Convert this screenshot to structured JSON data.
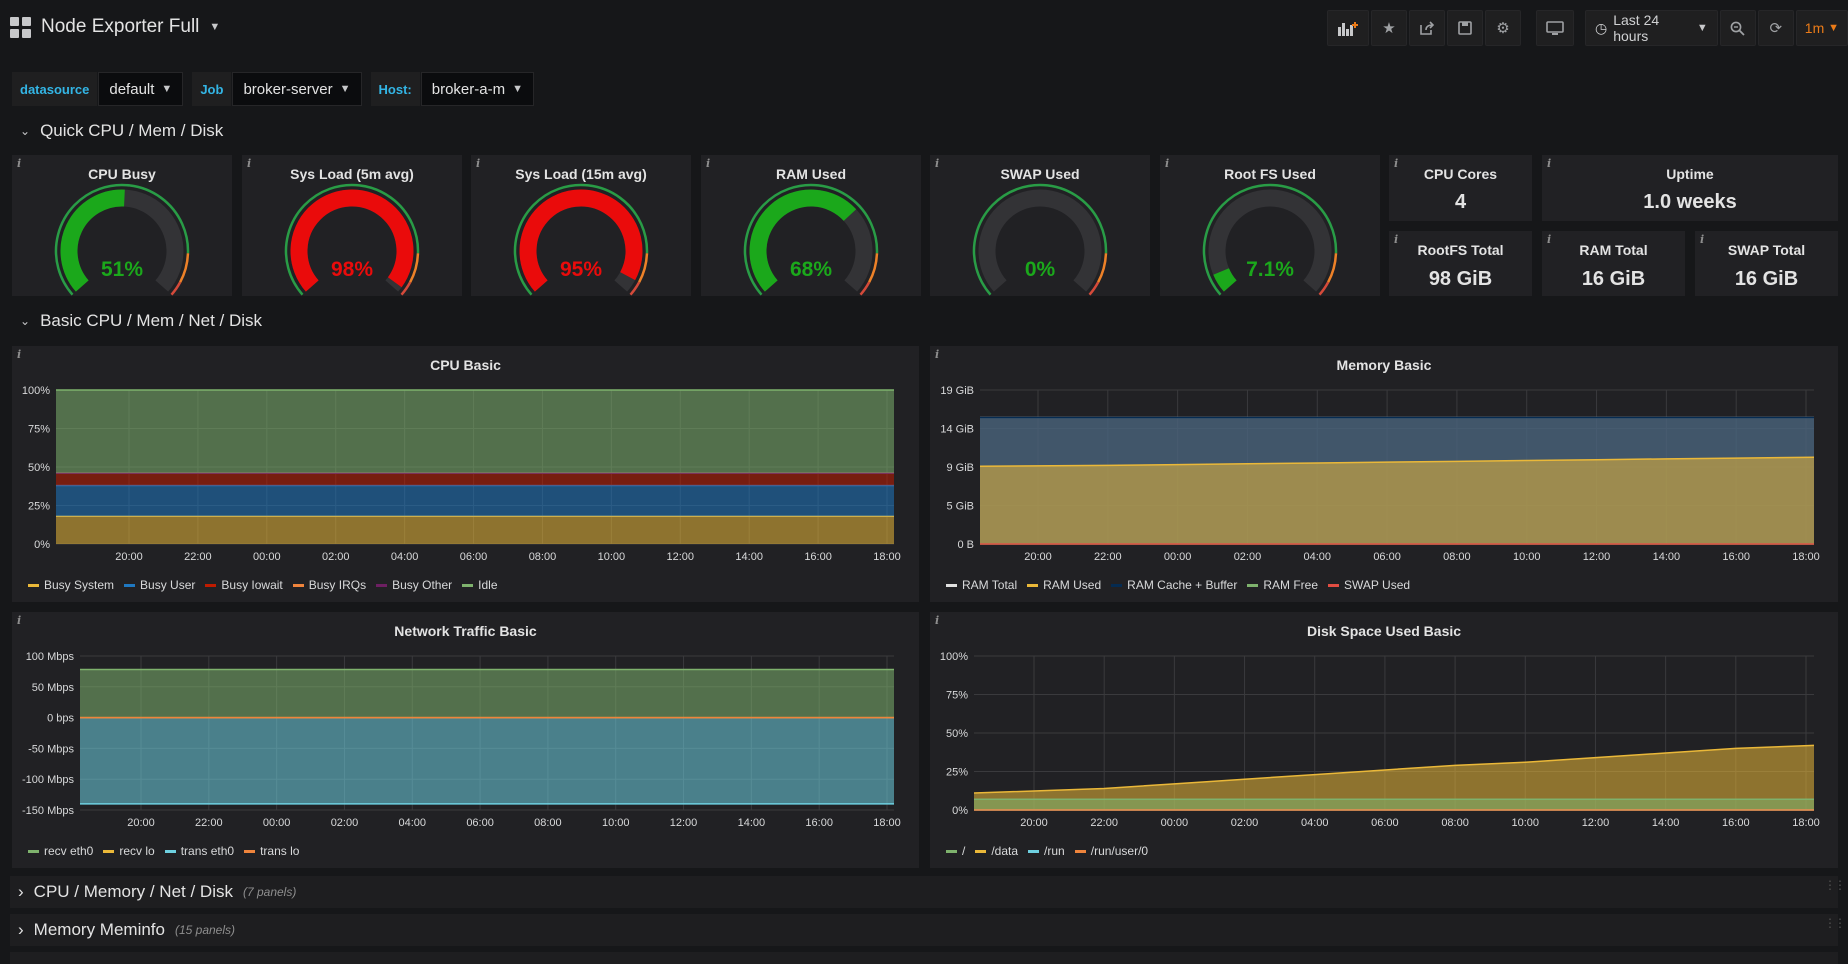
{
  "header": {
    "title": "Node Exporter Full",
    "time_range": "Last 24 hours",
    "refresh_interval": "1m",
    "toolbar_icons": [
      "add-panel-icon",
      "star-icon",
      "share-icon",
      "save-icon",
      "settings-icon",
      "tv-mode-icon",
      "clock-icon",
      "zoom-out-icon",
      "refresh-icon"
    ]
  },
  "variables": [
    {
      "label": "datasource",
      "value": "default"
    },
    {
      "label": "Job",
      "value": "broker-server"
    },
    {
      "label": "Host:",
      "value": "broker-a-m"
    }
  ],
  "rows": {
    "quick": "Quick CPU / Mem / Disk",
    "basic": "Basic CPU / Mem / Net / Disk",
    "collapsed": [
      {
        "title": "CPU / Memory / Net / Disk",
        "count": "(7 panels)"
      },
      {
        "title": "Memory Meminfo",
        "count": "(15 panels)"
      },
      {
        "title": "",
        "count": ""
      }
    ]
  },
  "gauges": [
    {
      "title": "CPU Busy",
      "display": "51%",
      "value": 51,
      "color": "#1ba81b"
    },
    {
      "title": "Sys Load (5m avg)",
      "display": "98%",
      "value": 98,
      "color": "#ea0b0b"
    },
    {
      "title": "Sys Load (15m avg)",
      "display": "95%",
      "value": 95,
      "color": "#ea0b0b"
    },
    {
      "title": "RAM Used",
      "display": "68%",
      "value": 68,
      "color": "#1ba81b"
    },
    {
      "title": "SWAP Used",
      "display": "0%",
      "value": 0,
      "color": "#1ba81b"
    },
    {
      "title": "Root FS Used",
      "display": "7.1%",
      "value": 7.1,
      "color": "#1ba81b"
    }
  ],
  "stats": {
    "cpu_cores": {
      "title": "CPU Cores",
      "value": "4"
    },
    "uptime": {
      "title": "Uptime",
      "value": "1.0 weeks"
    },
    "rootfs_total": {
      "title": "RootFS Total",
      "value": "98 GiB"
    },
    "ram_total": {
      "title": "RAM Total",
      "value": "16 GiB"
    },
    "swap_total": {
      "title": "SWAP Total",
      "value": "16 GiB"
    }
  },
  "chart_data": [
    {
      "type": "area",
      "title": "CPU Basic",
      "x": [
        "20:00",
        "22:00",
        "00:00",
        "02:00",
        "04:00",
        "06:00",
        "08:00",
        "10:00",
        "12:00",
        "14:00",
        "16:00",
        "18:00"
      ],
      "y_ticks": [
        "0%",
        "25%",
        "50%",
        "75%",
        "100%"
      ],
      "ylim": [
        0,
        100
      ],
      "stacked": true,
      "series": [
        {
          "name": "Busy System",
          "color": "#eab839",
          "values": [
            18,
            18,
            18,
            18,
            18,
            18,
            18,
            18,
            18,
            18,
            18,
            18
          ]
        },
        {
          "name": "Busy User",
          "color": "#1f78c1",
          "values": [
            20,
            20,
            20,
            20,
            20,
            20,
            20,
            20,
            20,
            20,
            20,
            20
          ]
        },
        {
          "name": "Busy Iowait",
          "color": "#bf1b00",
          "values": [
            8,
            8,
            8,
            8,
            8,
            8,
            8,
            8,
            8,
            8,
            8,
            8
          ]
        },
        {
          "name": "Busy IRQs",
          "color": "#ef843c",
          "values": [
            0,
            0,
            0,
            0,
            0,
            0,
            0,
            0,
            0,
            0,
            0,
            0
          ]
        },
        {
          "name": "Busy Other",
          "color": "#6d1f62",
          "values": [
            0,
            0,
            0,
            0,
            0,
            0,
            0,
            0,
            0,
            0,
            0,
            0
          ]
        },
        {
          "name": "Idle",
          "color": "#7eb26d",
          "values": [
            54,
            54,
            54,
            54,
            54,
            54,
            54,
            54,
            54,
            54,
            54,
            54
          ]
        }
      ]
    },
    {
      "type": "area",
      "title": "Memory Basic",
      "x": [
        "20:00",
        "22:00",
        "00:00",
        "02:00",
        "04:00",
        "06:00",
        "08:00",
        "10:00",
        "12:00",
        "14:00",
        "16:00",
        "18:00"
      ],
      "y_ticks": [
        "0 B",
        "5 GiB",
        "9 GiB",
        "14 GiB",
        "19 GiB"
      ],
      "ylim": [
        0,
        19
      ],
      "series": [
        {
          "name": "RAM Total",
          "color": "#e0e0e0",
          "values": [
            15.6,
            15.6,
            15.6,
            15.6,
            15.6,
            15.6,
            15.6,
            15.6,
            15.6,
            15.6,
            15.6,
            15.6
          ]
        },
        {
          "name": "RAM Used",
          "color": "#eab839",
          "values": [
            9.6,
            9.7,
            9.8,
            9.9,
            10.0,
            10.1,
            10.2,
            10.3,
            10.4,
            10.5,
            10.6,
            10.7
          ]
        },
        {
          "name": "RAM Cache + Buffer",
          "color": "#052b51",
          "values": [
            15.6,
            15.6,
            15.6,
            15.6,
            15.6,
            15.6,
            15.6,
            15.6,
            15.6,
            15.6,
            15.6,
            15.6
          ]
        },
        {
          "name": "RAM Free",
          "color": "#7eb26d",
          "values": [
            0,
            0,
            0,
            0,
            0,
            0,
            0,
            0,
            0,
            0,
            0,
            0
          ]
        },
        {
          "name": "SWAP Used",
          "color": "#e24d42",
          "values": [
            0,
            0,
            0,
            0,
            0,
            0,
            0,
            0,
            0,
            0,
            0,
            0
          ]
        }
      ]
    },
    {
      "type": "area",
      "title": "Network Traffic Basic",
      "x": [
        "20:00",
        "22:00",
        "00:00",
        "02:00",
        "04:00",
        "06:00",
        "08:00",
        "10:00",
        "12:00",
        "14:00",
        "16:00",
        "18:00"
      ],
      "y_ticks": [
        "-150 Mbps",
        "-100 Mbps",
        "-50 Mbps",
        "0 bps",
        "50 Mbps",
        "100 Mbps"
      ],
      "ylim": [
        -150,
        100
      ],
      "series": [
        {
          "name": "recv eth0",
          "color": "#7eb26d",
          "values": [
            78,
            78,
            78,
            78,
            78,
            78,
            78,
            78,
            78,
            78,
            78,
            78
          ]
        },
        {
          "name": "recv lo",
          "color": "#eab839",
          "values": [
            0,
            0,
            0,
            0,
            0,
            0,
            0,
            0,
            0,
            0,
            0,
            0
          ]
        },
        {
          "name": "trans eth0",
          "color": "#6ed0e0",
          "values": [
            -140,
            -140,
            -140,
            -140,
            -140,
            -140,
            -140,
            -140,
            -140,
            -140,
            -140,
            -140
          ]
        },
        {
          "name": "trans lo",
          "color": "#ef843c",
          "values": [
            0,
            0,
            0,
            0,
            0,
            0,
            0,
            0,
            0,
            0,
            0,
            0
          ]
        }
      ]
    },
    {
      "type": "area",
      "title": "Disk Space Used Basic",
      "x": [
        "20:00",
        "22:00",
        "00:00",
        "02:00",
        "04:00",
        "06:00",
        "08:00",
        "10:00",
        "12:00",
        "14:00",
        "16:00",
        "18:00"
      ],
      "y_ticks": [
        "0%",
        "25%",
        "50%",
        "75%",
        "100%"
      ],
      "ylim": [
        0,
        100
      ],
      "series": [
        {
          "name": "/",
          "color": "#7eb26d",
          "values": [
            7,
            7,
            7,
            7,
            7,
            7,
            7,
            7,
            7,
            7,
            7,
            7
          ]
        },
        {
          "name": "/data",
          "color": "#eab839",
          "values": [
            11,
            14,
            17,
            20,
            23,
            26,
            29,
            31,
            34,
            37,
            40,
            42
          ]
        },
        {
          "name": "/run",
          "color": "#6ed0e0",
          "values": [
            0,
            0,
            0,
            0,
            0,
            0,
            0,
            0,
            0,
            0,
            0,
            0
          ]
        },
        {
          "name": "/run/user/0",
          "color": "#ef843c",
          "values": [
            0,
            0,
            0,
            0,
            0,
            0,
            0,
            0,
            0,
            0,
            0,
            0
          ]
        }
      ]
    }
  ]
}
